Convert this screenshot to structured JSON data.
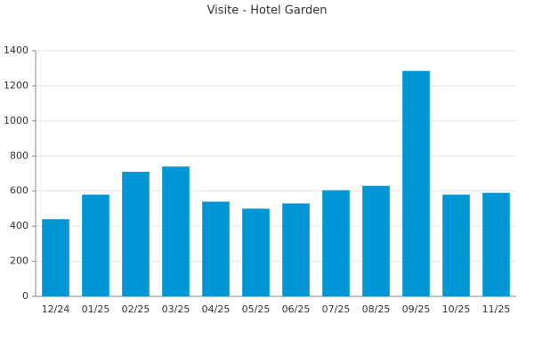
{
  "chart_data": {
    "type": "bar",
    "title": "Visite - Hotel Garden",
    "categories": [
      "12/24",
      "01/25",
      "02/25",
      "03/25",
      "04/25",
      "05/25",
      "06/25",
      "07/25",
      "08/25",
      "09/25",
      "10/25",
      "11/25"
    ],
    "values": [
      440,
      580,
      710,
      740,
      540,
      500,
      530,
      605,
      630,
      1285,
      580,
      590
    ],
    "color": "#0096d6",
    "ylim": [
      0,
      1400
    ],
    "yticks": [
      0,
      200,
      400,
      600,
      800,
      1000,
      1200,
      1400
    ],
    "grid": true
  }
}
